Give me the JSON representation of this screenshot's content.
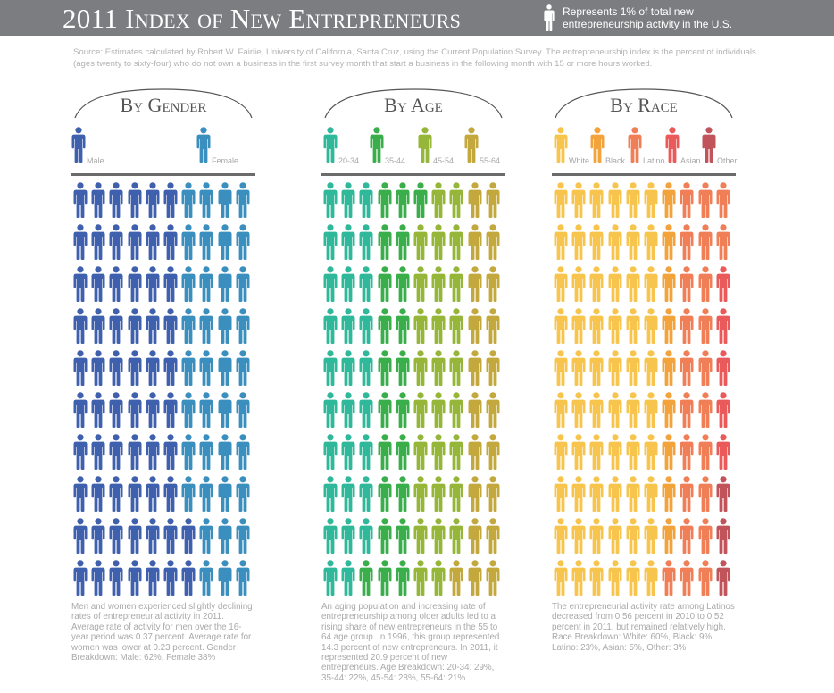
{
  "header": {
    "title": "2011 Index of New Entrepreneurs",
    "legend_note": "Represents 1% of total new entrepreneurship activity in the U.S."
  },
  "source": "Source: Estimates calculated by Robert W. Fairlie, University of California, Santa Cruz, using the Current Population Survey. The entrepreneurship index is the percent of individuals (ages twenty to sixty-four) who do not own a business in the first survey month that start a business in the following month with 15 or more hours worked.",
  "chart_data": [
    {
      "type": "pictogram",
      "title": "By Gender",
      "unit": "1 icon = 1%",
      "categories": [
        "Male",
        "Female"
      ],
      "colors": [
        "#3f60ad",
        "#3b8fbe"
      ],
      "values": [
        62,
        38
      ],
      "rows": [
        [
          6,
          4
        ],
        [
          6,
          4
        ],
        [
          6,
          4
        ],
        [
          6,
          4
        ],
        [
          6,
          4
        ],
        [
          6,
          4
        ],
        [
          6,
          4
        ],
        [
          6,
          4
        ],
        [
          7,
          3
        ],
        [
          7,
          3
        ]
      ],
      "description": "Men and women experienced slightly declining rates of entrepreneurial activity in 2011. Average rate of activity for men over the 16-year period was 0.37 percent. Average rate for women was lower at 0.23 percent. Gender Breakdown: Male: 62%, Female 38%"
    },
    {
      "type": "pictogram",
      "title": "By Age",
      "unit": "1 icon = 1%",
      "categories": [
        "20-34",
        "35-44",
        "45-54",
        "55-64"
      ],
      "colors": [
        "#2fb89a",
        "#3aae4a",
        "#95b638",
        "#c3a83e"
      ],
      "values": [
        29,
        22,
        28,
        21
      ],
      "rows": [
        [
          3,
          3,
          2,
          2
        ],
        [
          3,
          2,
          3,
          2
        ],
        [
          3,
          2,
          3,
          2
        ],
        [
          3,
          2,
          3,
          2
        ],
        [
          3,
          2,
          3,
          2
        ],
        [
          3,
          2,
          3,
          2
        ],
        [
          3,
          2,
          3,
          2
        ],
        [
          3,
          2,
          3,
          2
        ],
        [
          3,
          2,
          3,
          2
        ],
        [
          2,
          3,
          2,
          3
        ]
      ],
      "description": "An aging population and increasing rate of entrepreneurship among older adults led to a rising share of new entrepreneurs in the 55 to 64 age group. In 1996, this group represented 14.3 percent of new entrepreneurs. In 2011, it represented 20.9 percent of new entrepreneurs. Age Breakdown: 20-34: 29%, 35-44: 22%, 45-54: 28%, 55-64: 21%"
    },
    {
      "type": "pictogram",
      "title": "By Race",
      "unit": "1 icon = 1%",
      "categories": [
        "White",
        "Black",
        "Latino",
        "Asian",
        "Other"
      ],
      "colors": [
        "#f7c54e",
        "#f3a33c",
        "#f07f57",
        "#ea5a5a",
        "#c1535a"
      ],
      "values": [
        60,
        9,
        23,
        5,
        3
      ],
      "rows": [
        [
          6,
          1,
          3,
          0,
          0
        ],
        [
          6,
          1,
          3,
          0,
          0
        ],
        [
          6,
          1,
          2,
          1,
          0
        ],
        [
          6,
          1,
          2,
          1,
          0
        ],
        [
          6,
          1,
          2,
          1,
          0
        ],
        [
          6,
          1,
          2,
          1,
          0
        ],
        [
          6,
          1,
          2,
          1,
          0
        ],
        [
          6,
          1,
          2,
          0,
          1
        ],
        [
          6,
          1,
          2,
          0,
          1
        ],
        [
          6,
          0,
          3,
          0,
          1
        ]
      ],
      "description": "The entrepreneurial activity rate among Latinos decreased from 0.56 percent in 2010 to 0.52 percent in 2011, but remained relatively high. Race Breakdown: White: 60%, Black: 9%, Latino: 23%, Asian: 5%, Other: 3%"
    }
  ]
}
